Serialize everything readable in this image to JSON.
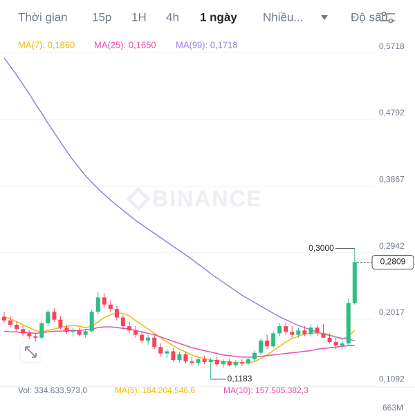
{
  "tabs": [
    "Thời gian",
    "15p",
    "1H",
    "4h",
    "1 ngày",
    "Nhiều...",
    "Độ sâu"
  ],
  "watermark": "BINANCE",
  "chart_data": {
    "type": "candlestick",
    "legend": [
      "MA(7): 0,1860",
      "MA(25): 0,1650",
      "MA(99): 0,1718"
    ],
    "ylim": [
      0.1092,
      0.5718
    ],
    "yticks": [
      {
        "value": 0.5718,
        "label": "0,5718"
      },
      {
        "value": 0.4792,
        "label": "0,4792"
      },
      {
        "value": 0.3867,
        "label": "0,3867"
      },
      {
        "value": 0.2942,
        "label": "0,2942"
      },
      {
        "value": 0.2017,
        "label": "0,2017"
      },
      {
        "value": 0.1092,
        "label": "0,1092"
      }
    ],
    "up_color": "#2ebd85",
    "down_color": "#f6465d",
    "open": [
      0.205,
      0.2,
      0.194,
      0.188,
      0.182,
      0.178,
      0.176,
      0.196,
      0.212,
      0.201,
      0.19,
      0.184,
      0.186,
      0.18,
      0.185,
      0.212,
      0.232,
      0.222,
      0.216,
      0.204,
      0.192,
      0.186,
      0.18,
      0.172,
      0.176,
      0.163,
      0.154,
      0.157,
      0.145,
      0.153,
      0.143,
      0.141,
      0.146,
      0.142,
      0.145,
      0.139,
      0.143,
      0.138,
      0.142,
      0.14,
      0.146,
      0.155,
      0.172,
      0.164,
      0.182,
      0.192,
      0.184,
      0.18,
      0.186,
      0.181,
      0.19,
      0.182,
      0.176,
      0.17,
      0.165,
      0.168,
      0.224
    ],
    "high": [
      0.212,
      0.206,
      0.199,
      0.193,
      0.186,
      0.183,
      0.199,
      0.215,
      0.217,
      0.206,
      0.194,
      0.19,
      0.19,
      0.188,
      0.215,
      0.24,
      0.238,
      0.228,
      0.22,
      0.208,
      0.198,
      0.192,
      0.185,
      0.18,
      0.18,
      0.168,
      0.16,
      0.162,
      0.156,
      0.157,
      0.15,
      0.149,
      0.151,
      0.148,
      0.15,
      0.146,
      0.147,
      0.145,
      0.146,
      0.148,
      0.158,
      0.175,
      0.18,
      0.185,
      0.196,
      0.197,
      0.192,
      0.19,
      0.192,
      0.195,
      0.194,
      0.195,
      0.182,
      0.176,
      0.172,
      0.23,
      0.3
    ],
    "low": [
      0.196,
      0.19,
      0.184,
      0.178,
      0.174,
      0.171,
      0.174,
      0.192,
      0.198,
      0.188,
      0.181,
      0.178,
      0.178,
      0.176,
      0.183,
      0.208,
      0.218,
      0.212,
      0.2,
      0.188,
      0.182,
      0.176,
      0.168,
      0.166,
      0.16,
      0.15,
      0.148,
      0.142,
      0.141,
      0.14,
      0.138,
      0.137,
      0.139,
      0.1183,
      0.136,
      0.134,
      0.136,
      0.135,
      0.136,
      0.138,
      0.143,
      0.152,
      0.16,
      0.162,
      0.178,
      0.18,
      0.176,
      0.176,
      0.178,
      0.178,
      0.178,
      0.176,
      0.168,
      0.16,
      0.16,
      0.166,
      0.222
    ],
    "close": [
      0.2,
      0.194,
      0.188,
      0.182,
      0.178,
      0.176,
      0.196,
      0.212,
      0.201,
      0.19,
      0.184,
      0.186,
      0.18,
      0.185,
      0.212,
      0.232,
      0.222,
      0.216,
      0.204,
      0.192,
      0.186,
      0.18,
      0.172,
      0.176,
      0.163,
      0.154,
      0.157,
      0.145,
      0.153,
      0.143,
      0.141,
      0.146,
      0.142,
      0.145,
      0.139,
      0.143,
      0.138,
      0.142,
      0.14,
      0.146,
      0.155,
      0.172,
      0.164,
      0.182,
      0.192,
      0.184,
      0.18,
      0.186,
      0.181,
      0.19,
      0.182,
      0.176,
      0.17,
      0.165,
      0.168,
      0.224,
      0.2809
    ],
    "series": [
      {
        "color": "#f0b90b",
        "values": [
          0.205,
          0.202,
          0.198,
          0.194,
          0.19,
          0.186,
          0.184,
          0.186,
          0.188,
          0.19,
          0.192,
          0.193,
          0.192,
          0.19,
          0.192,
          0.198,
          0.204,
          0.208,
          0.21,
          0.21,
          0.206,
          0.2,
          0.194,
          0.188,
          0.182,
          0.176,
          0.17,
          0.165,
          0.16,
          0.156,
          0.152,
          0.149,
          0.147,
          0.145,
          0.144,
          0.143,
          0.142,
          0.141,
          0.141,
          0.141,
          0.143,
          0.147,
          0.152,
          0.158,
          0.164,
          0.17,
          0.175,
          0.178,
          0.181,
          0.182,
          0.183,
          0.182,
          0.18,
          0.177,
          0.174,
          0.178,
          0.186
        ]
      },
      {
        "color": "#e84fa8",
        "values": [
          0.185,
          0.184,
          0.184,
          0.183,
          0.183,
          0.182,
          0.183,
          0.184,
          0.185,
          0.185,
          0.186,
          0.186,
          0.186,
          0.187,
          0.188,
          0.19,
          0.191,
          0.191,
          0.19,
          0.189,
          0.188,
          0.186,
          0.184,
          0.182,
          0.18,
          0.177,
          0.174,
          0.171,
          0.168,
          0.165,
          0.162,
          0.16,
          0.158,
          0.156,
          0.154,
          0.152,
          0.151,
          0.15,
          0.149,
          0.149,
          0.149,
          0.15,
          0.151,
          0.152,
          0.153,
          0.154,
          0.155,
          0.156,
          0.157,
          0.158,
          0.16,
          0.161,
          0.162,
          0.163,
          0.164,
          0.165,
          0.165
        ]
      },
      {
        "color": "#9b7ce8",
        "values": [
          0.565,
          0.553,
          0.541,
          0.528,
          0.515,
          0.501,
          0.488,
          0.474,
          0.461,
          0.448,
          0.435,
          0.423,
          0.412,
          0.401,
          0.392,
          0.383,
          0.375,
          0.367,
          0.36,
          0.353,
          0.346,
          0.339,
          0.333,
          0.327,
          0.321,
          0.315,
          0.309,
          0.303,
          0.297,
          0.291,
          0.285,
          0.278,
          0.272,
          0.265,
          0.259,
          0.253,
          0.247,
          0.241,
          0.235,
          0.23,
          0.225,
          0.22,
          0.215,
          0.21,
          0.205,
          0.201,
          0.197,
          0.193,
          0.19,
          0.187,
          0.184,
          0.181,
          0.179,
          0.177,
          0.175,
          0.174,
          0.1718
        ]
      }
    ],
    "annotations": [
      {
        "value": 0.3,
        "label": "0,3000"
      },
      {
        "value": 0.1183,
        "label": "0,1183"
      }
    ],
    "last_price": {
      "value": 0.2809,
      "label": "0,2809"
    }
  },
  "volume": {
    "legend": [
      "Vol: 334.633.973,0",
      "MA(5): 184.204.546,6",
      "MA(10): 157.505.382,3"
    ],
    "axis_label": "663M"
  }
}
